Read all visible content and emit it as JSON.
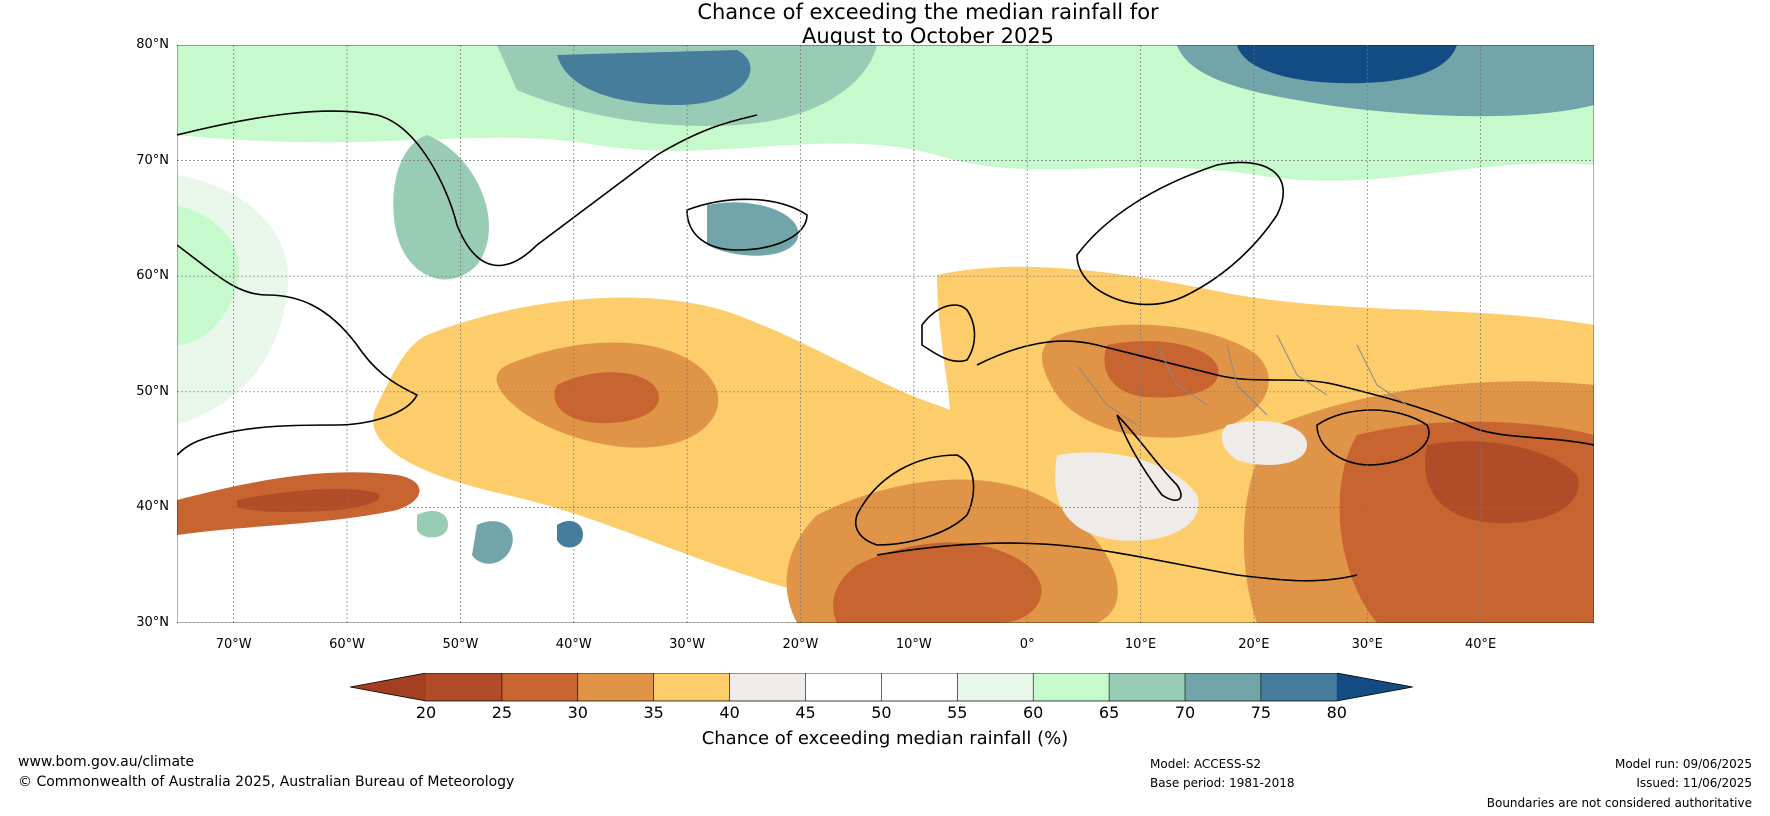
{
  "title": {
    "line1": "Chance of exceeding the median rainfall for",
    "line2": "August to October 2025"
  },
  "map": {
    "region": "North Atlantic and Europe",
    "lat_labels": [
      "80°N",
      "70°N",
      "60°N",
      "50°N",
      "40°N",
      "30°N"
    ],
    "lon_labels": [
      "70°W",
      "60°W",
      "50°W",
      "40°W",
      "30°W",
      "20°W",
      "10°W",
      "0°",
      "10°E",
      "20°E",
      "30°E",
      "40°E"
    ],
    "lat_range": [
      30,
      80
    ],
    "lon_range": [
      -75,
      50
    ],
    "gridlines": true
  },
  "colorbar": {
    "ticks": [
      "20",
      "25",
      "30",
      "35",
      "40",
      "45",
      "50",
      "55",
      "60",
      "65",
      "70",
      "75",
      "80"
    ],
    "colors": [
      "#a33f20",
      "#b14c28",
      "#c7642f",
      "#e09447",
      "#fecd6b",
      "#efebe8",
      "#ffffff",
      "#ffffff",
      "#e9f7ea",
      "#c6f9cb",
      "#99ccb5",
      "#72a5aa",
      "#467c9c",
      "#124c83"
    ],
    "label": "Chance of exceeding median rainfall (%)"
  },
  "footer": {
    "website": "www.bom.gov.au/climate",
    "copyright": "© Commonwealth of Australia 2025, Australian Bureau of Meteorology",
    "model": "Model: ACCESS-S2",
    "base_period": "Base period: 1981-2018",
    "model_run": "Model run: 09/06/2025",
    "issued": "Issued: 11/06/2025",
    "disclaimer": "Boundaries are not considered authoritative"
  }
}
